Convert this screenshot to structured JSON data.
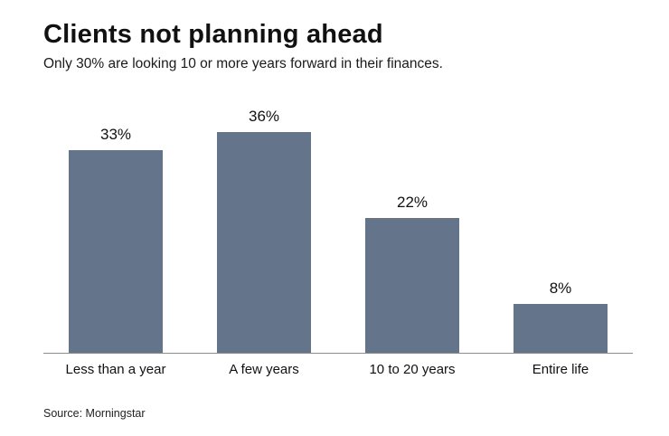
{
  "chart_data": {
    "type": "bar",
    "title": "Clients not planning ahead",
    "subtitle": "Only 30% are looking 10 or more years forward in their finances.",
    "categories": [
      "Less than a year",
      "A few years",
      "10 to 20 years",
      "Entire life"
    ],
    "values": [
      33,
      36,
      22,
      8
    ],
    "value_labels": [
      "33%",
      "36%",
      "22%",
      "8%"
    ],
    "xlabel": "",
    "ylabel": "",
    "ylim": [
      0,
      40
    ],
    "grid": false,
    "legend": false,
    "bar_color": "#64748a",
    "source": "Source: Morningstar"
  }
}
